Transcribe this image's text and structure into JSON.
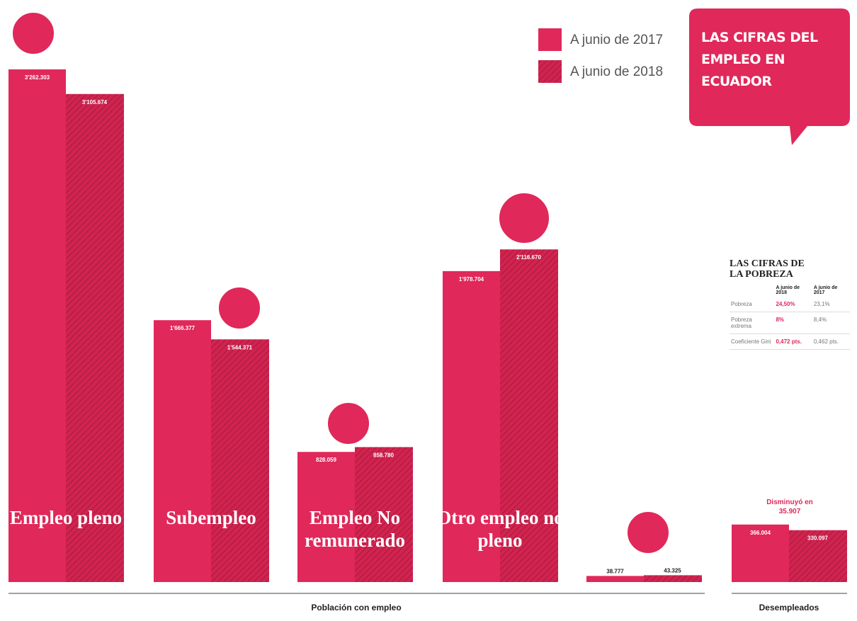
{
  "chart_data": {
    "type": "bar",
    "title": "LAS CIFRAS DEL EMPLEO EN ECUADOR",
    "categories": [
      "Empleo pleno",
      "Subempleo",
      "Empleo No remunerado",
      "Otro empleo no pleno",
      null,
      null
    ],
    "series": [
      {
        "name": "A junio de 2017",
        "color": "#e0285a",
        "values": [
          3262303,
          1666377,
          828059,
          1978704,
          38777,
          366004
        ],
        "value_labels": [
          "3'262.303",
          "1'666.377",
          "828.059",
          "1'978.704",
          "38.777",
          "366.004"
        ]
      },
      {
        "name": "A junio de 2018",
        "color": "#d0244f",
        "pattern": "hatch",
        "values": [
          3105674,
          1544371,
          858780,
          2116670,
          43325,
          330097
        ],
        "value_labels": [
          "3'105.674",
          "1'544.371",
          "858.780",
          "2'116.670",
          "43.325",
          "330.097"
        ]
      }
    ],
    "groups": [
      "Población con empleo",
      "Desempleados"
    ],
    "annotation": "Disminuyó en 35.907"
  },
  "poverty": {
    "title": "LAS CIFRAS DE LA POBREZA",
    "columns": [
      "A junio de 2018",
      "A junio de 2017"
    ],
    "rows": [
      [
        "Pobreza",
        "24,50%",
        "23,1%"
      ],
      [
        "Pobreza extrema",
        "8%",
        "8,4%"
      ],
      [
        "Coeficiente Gini",
        "0,472 pts.",
        "0,462 pts."
      ]
    ]
  }
}
